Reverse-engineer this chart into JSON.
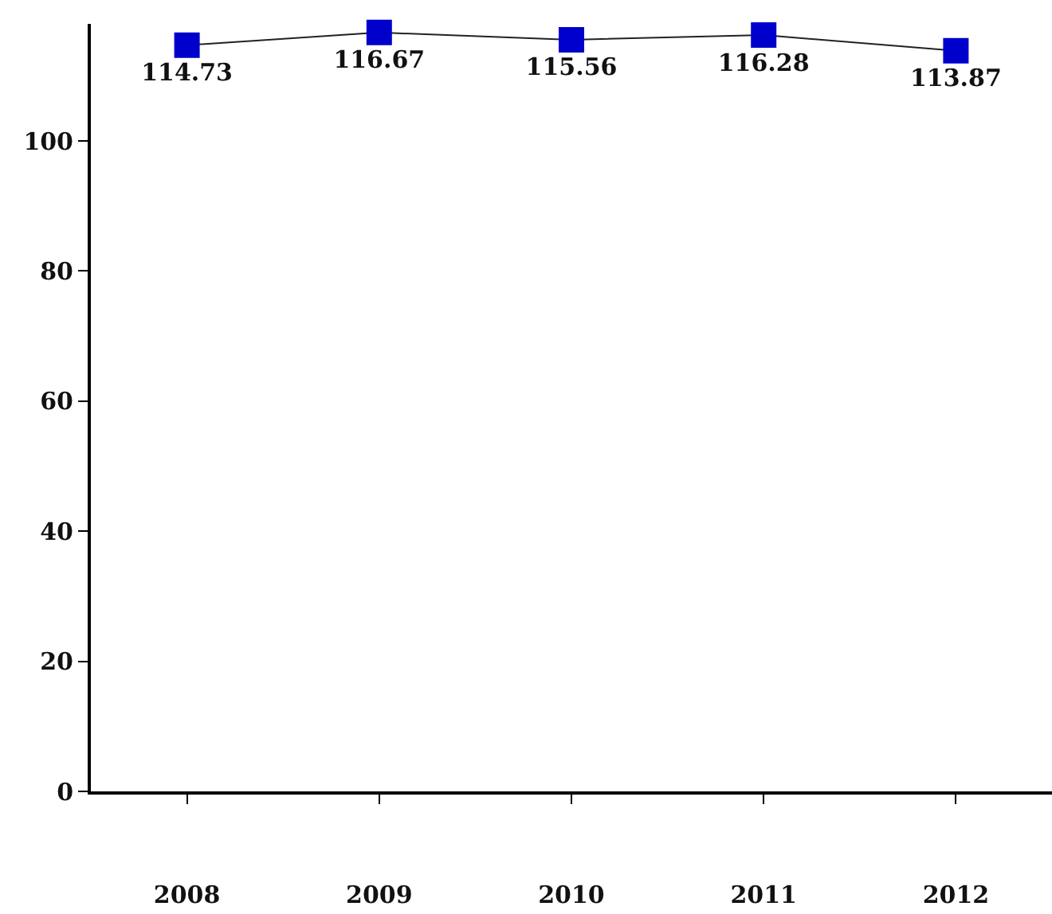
{
  "chart_data": {
    "type": "line",
    "categories": [
      "2008",
      "2009",
      "2010",
      "2011",
      "2012"
    ],
    "series": [
      {
        "color": "#0000cc",
        "values": [
          114.73,
          116.67,
          115.56,
          116.28,
          113.87
        ]
      }
    ],
    "ylim": [
      0,
      118
    ],
    "yticks": [
      0,
      20,
      40,
      60,
      80,
      100
    ],
    "marker": "square",
    "line_style": "solid",
    "data_labels": true,
    "legend": false
  }
}
